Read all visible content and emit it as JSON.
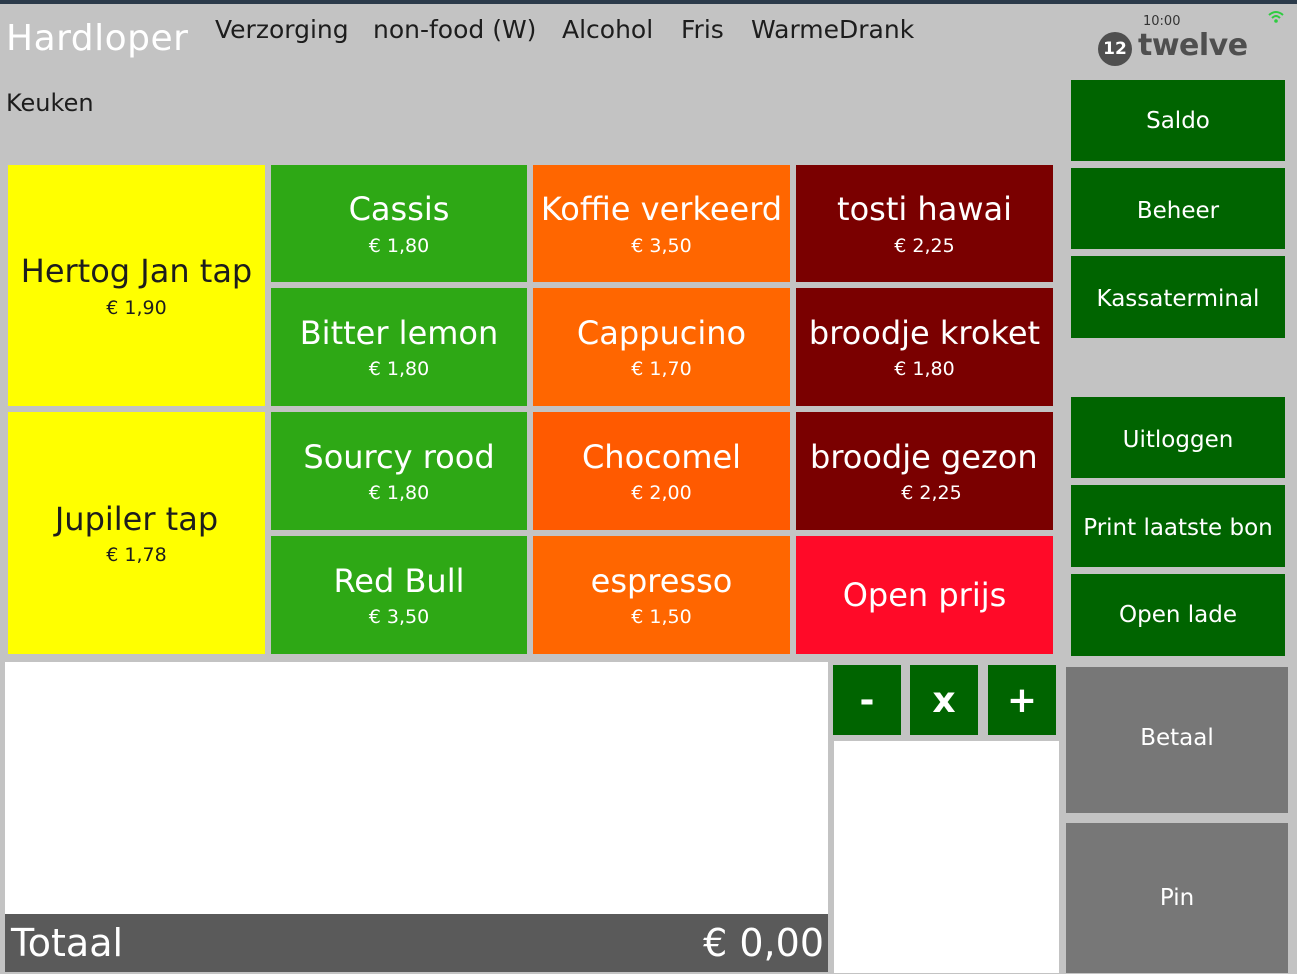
{
  "header": {
    "app_title": "Hardloper",
    "categories": [
      "Verzorging",
      "non-food (W)",
      "Alcohol",
      "Fris",
      "WarmeDrank"
    ],
    "subcategory": "Keuken",
    "logo_text": "twelve",
    "logo_mark": "12",
    "clock": "10:00",
    "wifi_icon": "wifi-icon"
  },
  "colors": {
    "yellow": "#ffff00",
    "green_tile": "#2ea815",
    "orange_tile": "#ff6600",
    "dark_red_tile": "#7a0000",
    "red_tile": "#ff0a28",
    "side_green": "#006400",
    "gray_button": "#777777"
  },
  "products": {
    "hertog": {
      "name": "Hertog Jan tap",
      "price": "€ 1,90"
    },
    "jupiler": {
      "name": "Jupiler tap",
      "price": "€ 1,78"
    },
    "cassis": {
      "name": "Cassis",
      "price": "€ 1,80"
    },
    "bitter": {
      "name": "Bitter lemon",
      "price": "€ 1,80"
    },
    "sourcy": {
      "name": "Sourcy rood",
      "price": "€ 1,80"
    },
    "redbull": {
      "name": "Red Bull",
      "price": "€ 3,50"
    },
    "koffie": {
      "name": "Koffie verkeerd",
      "price": "€ 3,50"
    },
    "cappucino": {
      "name": "Cappucino",
      "price": "€ 1,70"
    },
    "chocomel": {
      "name": "Chocomel",
      "price": "€ 2,00"
    },
    "espresso": {
      "name": "espresso",
      "price": "€ 1,50"
    },
    "tosti": {
      "name": "tosti hawai",
      "price": "€ 2,25"
    },
    "kroket": {
      "name": "broodje kroket",
      "price": "€ 1,80"
    },
    "gezond": {
      "name": "broodje gezon",
      "price": "€ 2,25"
    },
    "open_prijs": {
      "name": "Open prijs"
    }
  },
  "side_buttons": {
    "saldo": "Saldo",
    "beheer": "Beheer",
    "kassaterminal": "Kassaterminal",
    "uitloggen": "Uitloggen",
    "print": "Print laatste bon",
    "open_lade": "Open lade",
    "betaal": "Betaal",
    "pin": "Pin"
  },
  "qty": {
    "minus": "-",
    "times": "x",
    "plus": "+"
  },
  "total": {
    "label": "Totaal",
    "amount": "€ 0,00"
  }
}
